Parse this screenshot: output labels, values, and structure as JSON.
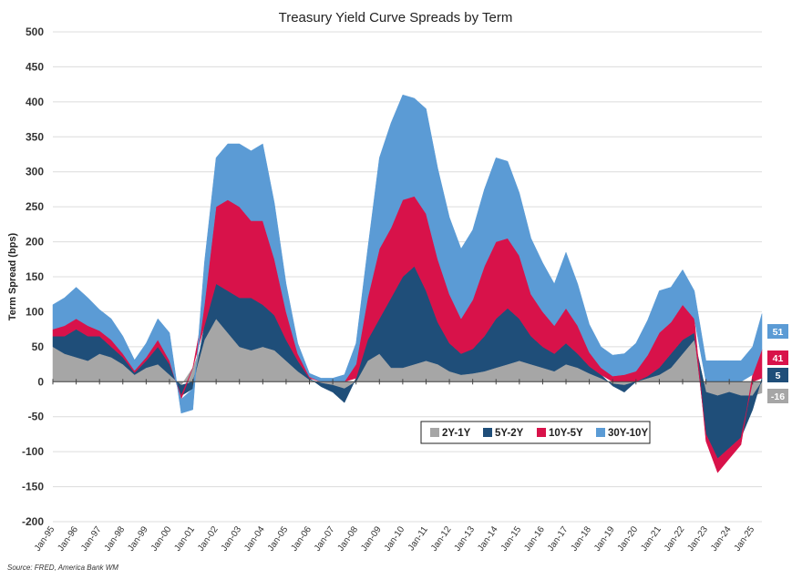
{
  "chart_data": {
    "type": "area",
    "title": "Treasury Yield Curve Spreads by Term",
    "ylabel": "Term Spread (bps)",
    "xlabel": "",
    "ylim": [
      -200,
      500
    ],
    "yticks": [
      500,
      450,
      400,
      350,
      300,
      250,
      200,
      150,
      100,
      50,
      0,
      -50,
      -100,
      -150,
      -200
    ],
    "xlim": [
      1995.0,
      2025.4
    ],
    "x_tick_labels": [
      "Jan-95",
      "Jan-96",
      "Jan-97",
      "Jan-98",
      "Jan-99",
      "Jan-00",
      "Jan-01",
      "Jan-02",
      "Jan-03",
      "Jan-04",
      "Jan-05",
      "Jan-06",
      "Jan-07",
      "Jan-08",
      "Jan-09",
      "Jan-10",
      "Jan-11",
      "Jan-12",
      "Jan-13",
      "Jan-14",
      "Jan-15",
      "Jan-16",
      "Jan-17",
      "Jan-18",
      "Jan-19",
      "Jan-20",
      "Jan-21",
      "Jan-22",
      "Jan-23",
      "Jan-24",
      "Jan-25"
    ],
    "x_tick_years": [
      1995,
      1996,
      1997,
      1998,
      1999,
      2000,
      2001,
      2002,
      2003,
      2004,
      2005,
      2006,
      2007,
      2008,
      2009,
      2010,
      2011,
      2012,
      2013,
      2014,
      2015,
      2016,
      2017,
      2018,
      2019,
      2020,
      2021,
      2022,
      2023,
      2024,
      2025
    ],
    "x": [
      1995.0,
      1995.5,
      1996.0,
      1996.5,
      1997.0,
      1997.5,
      1998.0,
      1998.5,
      1999.0,
      1999.5,
      2000.0,
      2000.5,
      2001.0,
      2001.5,
      2002.0,
      2002.5,
      2003.0,
      2003.5,
      2004.0,
      2004.5,
      2005.0,
      2005.5,
      2006.0,
      2006.5,
      2007.0,
      2007.5,
      2008.0,
      2008.5,
      2009.0,
      2009.5,
      2010.0,
      2010.5,
      2011.0,
      2011.5,
      2012.0,
      2012.5,
      2013.0,
      2013.5,
      2014.0,
      2014.5,
      2015.0,
      2015.5,
      2016.0,
      2016.5,
      2017.0,
      2017.5,
      2018.0,
      2018.5,
      2019.0,
      2019.5,
      2020.0,
      2020.5,
      2021.0,
      2021.5,
      2022.0,
      2022.5,
      2023.0,
      2023.5,
      2024.0,
      2024.5,
      2025.0,
      2025.4
    ],
    "series": [
      {
        "name": "2Y-1Y",
        "color": "#a6a6a6",
        "values": [
          50,
          40,
          35,
          30,
          40,
          35,
          25,
          10,
          20,
          25,
          10,
          -5,
          20,
          60,
          90,
          70,
          50,
          45,
          50,
          45,
          30,
          15,
          3,
          -2,
          -5,
          -10,
          0,
          30,
          40,
          20,
          20,
          25,
          30,
          25,
          15,
          10,
          12,
          15,
          20,
          25,
          30,
          25,
          20,
          15,
          25,
          20,
          12,
          5,
          -3,
          -5,
          0,
          5,
          10,
          20,
          40,
          60,
          -15,
          -20,
          -15,
          -20,
          -20,
          -16
        ]
      },
      {
        "name": "5Y-2Y",
        "color": "#1f4e79",
        "values": [
          15,
          25,
          40,
          35,
          25,
          15,
          10,
          3,
          10,
          25,
          15,
          -15,
          -10,
          20,
          50,
          60,
          70,
          75,
          60,
          50,
          30,
          15,
          2,
          -5,
          -10,
          -20,
          5,
          30,
          50,
          100,
          130,
          140,
          100,
          60,
          40,
          30,
          35,
          50,
          70,
          80,
          60,
          40,
          30,
          25,
          30,
          20,
          10,
          5,
          -3,
          -10,
          0,
          3,
          10,
          20,
          20,
          10,
          -60,
          -90,
          -80,
          -60,
          -20,
          5
        ]
      },
      {
        "name": "10Y-5Y",
        "color": "#d8124a",
        "values": [
          10,
          15,
          15,
          15,
          8,
          10,
          5,
          3,
          5,
          10,
          5,
          -5,
          0,
          30,
          110,
          130,
          130,
          110,
          120,
          80,
          40,
          10,
          2,
          0,
          0,
          0,
          20,
          60,
          100,
          100,
          110,
          100,
          110,
          90,
          70,
          50,
          70,
          100,
          110,
          100,
          90,
          60,
          50,
          40,
          50,
          40,
          20,
          10,
          8,
          10,
          15,
          30,
          50,
          45,
          50,
          20,
          -10,
          -20,
          -15,
          -10,
          10,
          41
        ]
      },
      {
        "name": "30Y-10Y",
        "color": "#5b9bd5",
        "values": [
          35,
          40,
          45,
          40,
          30,
          30,
          25,
          15,
          20,
          30,
          40,
          -20,
          -30,
          60,
          70,
          80,
          90,
          100,
          110,
          80,
          40,
          15,
          5,
          5,
          5,
          10,
          30,
          70,
          130,
          150,
          150,
          140,
          150,
          130,
          110,
          100,
          100,
          110,
          120,
          110,
          90,
          80,
          70,
          60,
          80,
          60,
          40,
          30,
          30,
          30,
          40,
          50,
          60,
          50,
          50,
          40,
          30,
          30,
          30,
          30,
          40,
          51
        ]
      }
    ],
    "end_labels": [
      {
        "series": "30Y-10Y",
        "text": "51",
        "color": "#5b9bd5"
      },
      {
        "series": "10Y-5Y",
        "text": "41",
        "color": "#d8124a"
      },
      {
        "series": "5Y-2Y",
        "text": "5",
        "color": "#1f4e79"
      },
      {
        "series": "2Y-1Y",
        "text": "-16",
        "color": "#a6a6a6"
      }
    ],
    "legend": [
      "2Y-1Y",
      "5Y-2Y",
      "10Y-5Y",
      "30Y-10Y"
    ],
    "legend_position": "center-right",
    "grid": true,
    "source": "Source: FRED, America Bank WM"
  }
}
